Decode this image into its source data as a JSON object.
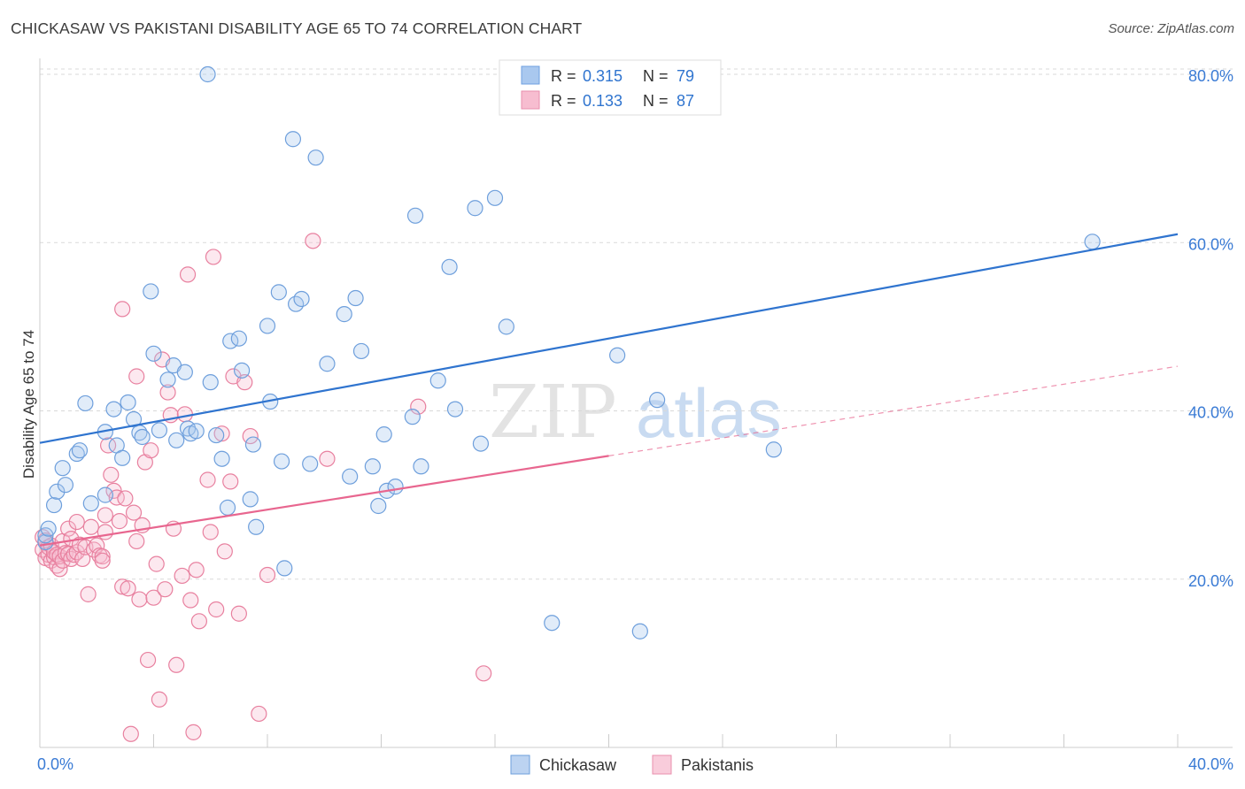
{
  "header": {
    "title": "CHICKASAW VS PAKISTANI DISABILITY AGE 65 TO 74 CORRELATION CHART",
    "source": "Source: ZipAtlas.com"
  },
  "watermark": {
    "left": "ZIP",
    "right": "atlas"
  },
  "legend": {
    "r_label": "R =",
    "n_label": "N =",
    "rows": [
      {
        "r": "0.315",
        "n": "79",
        "color": "#a9c8ef",
        "stroke": "#6fa0e0"
      },
      {
        "r": "0.133",
        "n": "87",
        "color": "#f7bdd0",
        "stroke": "#e98fae"
      }
    ]
  },
  "colors": {
    "chickasaw_fill": "rgba(169,200,239,0.35)",
    "chickasaw_stroke": "#6e9fdc",
    "chickasaw_line": "#2f74cf",
    "pakistani_fill": "rgba(247,189,208,0.35)",
    "pakistani_stroke": "#e8809f",
    "pakistani_line": "#e8668f",
    "grid": "#d9d9d9",
    "tick_label": "#3a7bd5"
  },
  "chart_data": {
    "type": "scatter",
    "title": "CHICKASAW VS PAKISTANI DISABILITY AGE 65 TO 74 CORRELATION CHART",
    "xlabel": "",
    "ylabel": "Disability Age 65 to 74",
    "xlim": [
      0,
      40
    ],
    "ylim": [
      0,
      80
    ],
    "x_tick_labels": [
      "0.0%",
      "40.0%"
    ],
    "y_ticks": [
      20,
      40,
      60,
      80
    ],
    "y_tick_labels": [
      "20.0%",
      "40.0%",
      "60.0%",
      "80.0%"
    ],
    "series": [
      {
        "name": "Chickasaw",
        "R": 0.315,
        "N": 79,
        "trend": {
          "x": [
            0,
            40
          ],
          "y": [
            36.2,
            61.0
          ],
          "solid_to": 40
        },
        "points": [
          [
            0.2,
            24.4
          ],
          [
            0.2,
            25.2
          ],
          [
            0.3,
            26.0
          ],
          [
            0.5,
            28.8
          ],
          [
            0.6,
            30.4
          ],
          [
            0.8,
            33.2
          ],
          [
            0.9,
            31.2
          ],
          [
            1.3,
            34.9
          ],
          [
            1.4,
            35.3
          ],
          [
            1.6,
            40.9
          ],
          [
            1.8,
            29.0
          ],
          [
            2.3,
            37.5
          ],
          [
            2.3,
            30.0
          ],
          [
            2.6,
            40.2
          ],
          [
            2.7,
            35.9
          ],
          [
            2.9,
            34.4
          ],
          [
            3.1,
            41.0
          ],
          [
            3.3,
            39.0
          ],
          [
            3.5,
            37.4
          ],
          [
            3.6,
            36.9
          ],
          [
            3.9,
            54.2
          ],
          [
            4.0,
            46.8
          ],
          [
            4.2,
            37.7
          ],
          [
            4.5,
            43.7
          ],
          [
            4.7,
            45.4
          ],
          [
            4.8,
            36.5
          ],
          [
            5.1,
            44.6
          ],
          [
            5.2,
            37.9
          ],
          [
            5.3,
            37.3
          ],
          [
            5.5,
            37.6
          ],
          [
            5.9,
            80.0
          ],
          [
            6.0,
            43.4
          ],
          [
            6.2,
            37.1
          ],
          [
            6.4,
            34.3
          ],
          [
            6.6,
            28.5
          ],
          [
            6.7,
            48.3
          ],
          [
            7.0,
            48.6
          ],
          [
            7.1,
            44.8
          ],
          [
            7.4,
            29.5
          ],
          [
            7.5,
            36.0
          ],
          [
            7.6,
            26.2
          ],
          [
            8.0,
            50.1
          ],
          [
            8.1,
            41.1
          ],
          [
            8.4,
            54.1
          ],
          [
            8.5,
            34.0
          ],
          [
            8.6,
            21.3
          ],
          [
            8.9,
            72.3
          ],
          [
            9.0,
            52.7
          ],
          [
            9.2,
            53.3
          ],
          [
            9.5,
            33.7
          ],
          [
            9.7,
            70.1
          ],
          [
            10.1,
            45.6
          ],
          [
            10.7,
            51.5
          ],
          [
            10.9,
            32.2
          ],
          [
            11.1,
            53.4
          ],
          [
            11.3,
            47.1
          ],
          [
            11.7,
            33.4
          ],
          [
            11.9,
            28.7
          ],
          [
            12.1,
            37.2
          ],
          [
            12.2,
            30.5
          ],
          [
            12.5,
            31.0
          ],
          [
            13.1,
            39.3
          ],
          [
            13.2,
            63.2
          ],
          [
            13.4,
            33.4
          ],
          [
            14.0,
            43.6
          ],
          [
            14.4,
            57.1
          ],
          [
            14.6,
            40.2
          ],
          [
            15.3,
            64.1
          ],
          [
            15.5,
            36.1
          ],
          [
            16.0,
            65.3
          ],
          [
            16.4,
            50.0
          ],
          [
            17.7,
            76.4
          ],
          [
            18.0,
            14.8
          ],
          [
            20.3,
            46.6
          ],
          [
            21.1,
            13.8
          ],
          [
            21.7,
            41.3
          ],
          [
            23.2,
            76.4
          ],
          [
            25.8,
            35.4
          ],
          [
            37.0,
            60.1
          ]
        ]
      },
      {
        "name": "Pakistanis",
        "R": 0.133,
        "N": 87,
        "trend": {
          "x": [
            0,
            40
          ],
          "y": [
            24.0,
            45.3
          ],
          "solid_to": 20
        },
        "points": [
          [
            0.1,
            23.5
          ],
          [
            0.1,
            25.0
          ],
          [
            0.2,
            22.5
          ],
          [
            0.2,
            24.6
          ],
          [
            0.3,
            22.9
          ],
          [
            0.3,
            23.8
          ],
          [
            0.4,
            22.2
          ],
          [
            0.4,
            24.0
          ],
          [
            0.5,
            22.6
          ],
          [
            0.5,
            23.2
          ],
          [
            0.6,
            21.6
          ],
          [
            0.6,
            22.9
          ],
          [
            0.7,
            21.2
          ],
          [
            0.7,
            22.7
          ],
          [
            0.8,
            22.2
          ],
          [
            0.8,
            24.5
          ],
          [
            0.9,
            23.1
          ],
          [
            1.0,
            26.0
          ],
          [
            1.0,
            23.0
          ],
          [
            1.1,
            24.8
          ],
          [
            1.1,
            22.4
          ],
          [
            1.2,
            22.9
          ],
          [
            1.3,
            23.2
          ],
          [
            1.3,
            26.8
          ],
          [
            1.4,
            24.1
          ],
          [
            1.5,
            22.4
          ],
          [
            1.6,
            23.8
          ],
          [
            1.7,
            18.2
          ],
          [
            1.8,
            26.2
          ],
          [
            1.9,
            23.5
          ],
          [
            2.0,
            24.0
          ],
          [
            2.1,
            22.8
          ],
          [
            2.2,
            22.7
          ],
          [
            2.3,
            25.6
          ],
          [
            2.3,
            27.6
          ],
          [
            2.4,
            35.9
          ],
          [
            2.5,
            32.4
          ],
          [
            2.6,
            30.5
          ],
          [
            2.7,
            29.7
          ],
          [
            2.8,
            26.9
          ],
          [
            2.9,
            19.1
          ],
          [
            3.0,
            29.6
          ],
          [
            3.1,
            18.9
          ],
          [
            3.3,
            27.9
          ],
          [
            3.4,
            24.5
          ],
          [
            3.5,
            17.6
          ],
          [
            3.6,
            26.4
          ],
          [
            3.7,
            33.9
          ],
          [
            3.8,
            10.4
          ],
          [
            3.9,
            35.3
          ],
          [
            4.0,
            17.8
          ],
          [
            4.1,
            21.8
          ],
          [
            4.2,
            5.7
          ],
          [
            4.3,
            46.1
          ],
          [
            4.4,
            18.8
          ],
          [
            4.5,
            42.2
          ],
          [
            4.6,
            39.5
          ],
          [
            4.7,
            26.0
          ],
          [
            4.8,
            9.8
          ],
          [
            5.0,
            20.4
          ],
          [
            5.1,
            39.6
          ],
          [
            5.2,
            56.2
          ],
          [
            5.3,
            17.5
          ],
          [
            5.4,
            1.8
          ],
          [
            5.5,
            21.1
          ],
          [
            5.6,
            15.0
          ],
          [
            5.9,
            31.8
          ],
          [
            6.0,
            25.6
          ],
          [
            6.1,
            58.3
          ],
          [
            6.2,
            16.4
          ],
          [
            6.4,
            37.3
          ],
          [
            6.5,
            23.3
          ],
          [
            6.7,
            31.6
          ],
          [
            6.8,
            44.1
          ],
          [
            7.0,
            15.9
          ],
          [
            7.2,
            43.4
          ],
          [
            7.4,
            37.0
          ],
          [
            7.7,
            4.0
          ],
          [
            8.0,
            20.5
          ],
          [
            9.6,
            60.2
          ],
          [
            10.1,
            34.3
          ],
          [
            13.3,
            40.5
          ],
          [
            15.6,
            8.8
          ],
          [
            2.2,
            22.2
          ],
          [
            2.9,
            52.1
          ],
          [
            3.2,
            1.6
          ],
          [
            3.4,
            44.1
          ]
        ]
      }
    ],
    "legend_position": "bottom-center"
  },
  "bottom_legend": {
    "items": [
      {
        "label": "Chickasaw"
      },
      {
        "label": "Pakistanis"
      }
    ]
  }
}
